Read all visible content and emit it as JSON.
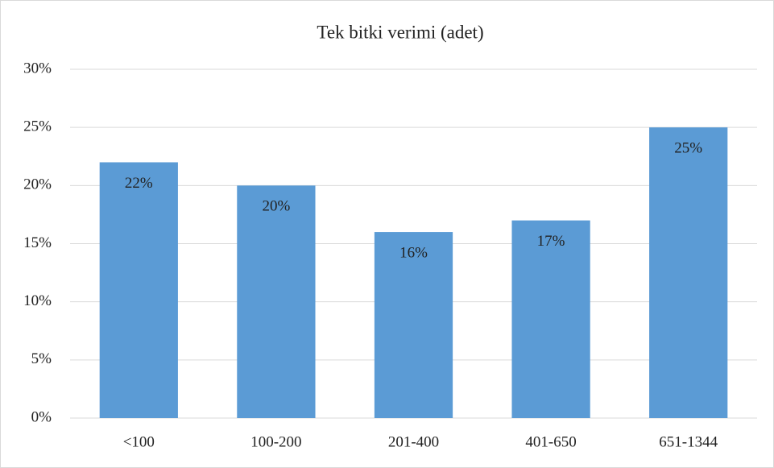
{
  "chart_data": {
    "type": "bar",
    "title": "Tek bitki verimi (adet)",
    "categories": [
      "<100",
      "100-200",
      "201-400",
      "401-650",
      "651-1344"
    ],
    "values": [
      22,
      20,
      16,
      17,
      25
    ],
    "value_labels": [
      "22%",
      "20%",
      "16%",
      "17%",
      "25%"
    ],
    "color": "#5b9bd5",
    "ylim": [
      0,
      30
    ],
    "yticks": [
      {
        "value": 0,
        "label": "0%"
      },
      {
        "value": 5,
        "label": "5%"
      },
      {
        "value": 10,
        "label": "10%"
      },
      {
        "value": 15,
        "label": "15%"
      },
      {
        "value": 20,
        "label": "20%"
      },
      {
        "value": 25,
        "label": "25%"
      },
      {
        "value": 30,
        "label": "30%"
      }
    ],
    "grid": true
  }
}
